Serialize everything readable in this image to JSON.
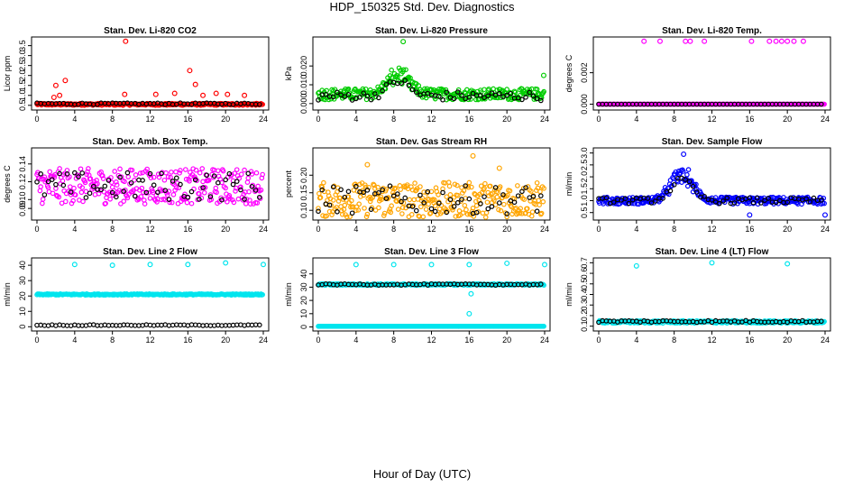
{
  "title": "HDP_150325  Std. Dev. Diagnostics",
  "x_title": "Hour of Day (UTC)",
  "colors": {
    "reference": "#000000",
    "red": "#ff0000",
    "green": "#00cc00",
    "magenta": "#ff00ff",
    "orange": "#ffa500",
    "blue": "#0000ff",
    "cyan": "#00e5ee"
  },
  "chart_data": [
    {
      "type": "scatter",
      "title": "Stan. Dev. Li-820 CO2",
      "ylabel": "Licor ppm",
      "xlim": [
        0,
        24
      ],
      "ylim": [
        0.4,
        3.8
      ],
      "xticks": [
        "0",
        "4",
        "8",
        "12",
        "16",
        "20",
        "24"
      ],
      "yticks": [
        "0.5",
        "1.0",
        "1.5",
        "2.0",
        "2.5",
        "3.0",
        "3.5"
      ],
      "ytick_values": [
        0.5,
        1.0,
        1.5,
        2.0,
        2.5,
        3.0,
        3.5
      ],
      "series_color": "red",
      "base": 0.55,
      "spread": 0.05,
      "black_base": 0.58,
      "outliers": [
        [
          9.4,
          3.72
        ],
        [
          16.2,
          2.25
        ],
        [
          3.0,
          1.75
        ],
        [
          2.0,
          1.5
        ],
        [
          16.8,
          1.55
        ],
        [
          9.3,
          1.05
        ],
        [
          12.6,
          1.05
        ],
        [
          14.6,
          1.1
        ],
        [
          17.6,
          1.0
        ],
        [
          19.0,
          1.1
        ],
        [
          20.2,
          1.05
        ],
        [
          22.0,
          1.0
        ],
        [
          2.4,
          1.0
        ],
        [
          1.8,
          0.9
        ]
      ]
    },
    {
      "type": "scatter",
      "title": "Stan. Dev. Li-820 Pressure",
      "ylabel": "kPa",
      "xlim": [
        0,
        24
      ],
      "ylim": [
        -0.002,
        0.034
      ],
      "xticks": [
        "0",
        "4",
        "8",
        "12",
        "16",
        "20",
        "24"
      ],
      "yticks": [
        "0.000",
        "0.010",
        "0.020"
      ],
      "ytick_values": [
        0.0,
        0.01,
        0.02
      ],
      "series_color": "green",
      "base": 0.005,
      "spread": 0.003,
      "black_base": 0.004,
      "bump_center": 8.5,
      "bump_height": 0.01,
      "outliers": [
        [
          9.0,
          0.033
        ],
        [
          23.9,
          0.015
        ]
      ]
    },
    {
      "type": "scatter",
      "title": "Stan. Dev. Li-820 Temp.",
      "ylabel": "degrees C",
      "xlim": [
        0,
        24
      ],
      "ylim": [
        -0.0002,
        0.0041
      ],
      "xticks": [
        "0",
        "4",
        "8",
        "12",
        "16",
        "20",
        "24"
      ],
      "yticks": [
        "0.000",
        "0.002"
      ],
      "ytick_values": [
        0.0,
        0.002
      ],
      "series_color": "magenta",
      "base": 0.0,
      "spread": 0.0,
      "black_base": 0.0,
      "outliers": [
        [
          4.8,
          0.004
        ],
        [
          6.5,
          0.004
        ],
        [
          9.2,
          0.004
        ],
        [
          9.7,
          0.004
        ],
        [
          11.2,
          0.004
        ],
        [
          16.2,
          0.004
        ],
        [
          18.1,
          0.004
        ],
        [
          18.8,
          0.004
        ],
        [
          19.4,
          0.004
        ],
        [
          20.0,
          0.004
        ],
        [
          20.7,
          0.004
        ],
        [
          21.7,
          0.004
        ]
      ]
    },
    {
      "type": "scatter",
      "title": "Stan. Dev. Amb. Box Temp.",
      "ylabel": "degrees C",
      "xlim": [
        0,
        24
      ],
      "ylim": [
        0.08,
        0.155
      ],
      "xticks": [
        "0",
        "4",
        "8",
        "12",
        "16",
        "20",
        "24"
      ],
      "yticks": [
        "0.09",
        "0.10",
        "0.12",
        "0.14"
      ],
      "ytick_values": [
        0.09,
        0.1,
        0.12,
        0.14
      ],
      "series_color": "magenta",
      "base": 0.115,
      "spread": 0.02,
      "black_base": 0.115,
      "outliers": []
    },
    {
      "type": "scatter",
      "title": "Stan. Dev. Gas Stream RH",
      "ylabel": "percent",
      "xlim": [
        0,
        24
      ],
      "ylim": [
        0.08,
        0.27
      ],
      "xticks": [
        "0",
        "4",
        "8",
        "12",
        "16",
        "20",
        "24"
      ],
      "yticks": [
        "0.10",
        "0.15",
        "0.20"
      ],
      "ytick_values": [
        0.1,
        0.15,
        0.2
      ],
      "series_color": "orange",
      "base": 0.13,
      "spread": 0.05,
      "black_base": 0.13,
      "outliers": [
        [
          16.4,
          0.255
        ],
        [
          19.2,
          0.22
        ],
        [
          5.2,
          0.23
        ]
      ]
    },
    {
      "type": "scatter",
      "title": "Stan. Dev. Sample Flow",
      "ylabel": "ml/min",
      "xlim": [
        0,
        24
      ],
      "ylim": [
        0.3,
        3.1
      ],
      "xticks": [
        "0",
        "4",
        "8",
        "12",
        "16",
        "20",
        "24"
      ],
      "yticks": [
        "0.5",
        "1.0",
        "1.5",
        "2.0",
        "2.5",
        "3.0"
      ],
      "ytick_values": [
        0.5,
        1.0,
        1.5,
        2.0,
        2.5,
        3.0
      ],
      "series_color": "blue",
      "base": 1.0,
      "spread": 0.15,
      "black_base": 1.0,
      "bump_center": 8.8,
      "bump_height": 1.1,
      "outliers": [
        [
          9.0,
          2.95
        ],
        [
          16.0,
          0.4
        ],
        [
          24.0,
          0.4
        ]
      ]
    },
    {
      "type": "scatter",
      "title": "Stan. Dev. Line 2 Flow",
      "ylabel": "ml/min",
      "xlim": [
        0,
        24
      ],
      "ylim": [
        -1,
        43
      ],
      "xticks": [
        "0",
        "4",
        "8",
        "12",
        "16",
        "20",
        "24"
      ],
      "yticks": [
        "0",
        "10",
        "20",
        "30",
        "40"
      ],
      "ytick_values": [
        0,
        10,
        20,
        30,
        40
      ],
      "series_color": "cyan",
      "base": 21,
      "spread": 0.4,
      "black_base": 1.0,
      "outliers": [
        [
          4.0,
          40.5
        ],
        [
          8.0,
          40.0
        ],
        [
          12.0,
          40.5
        ],
        [
          16.0,
          40.5
        ],
        [
          20.0,
          41.5
        ],
        [
          24.0,
          40.5
        ]
      ]
    },
    {
      "type": "scatter",
      "title": "Stan. Dev. Line 3 Flow",
      "ylabel": "ml/min",
      "xlim": [
        0,
        24
      ],
      "ylim": [
        -1,
        50
      ],
      "xticks": [
        "0",
        "4",
        "8",
        "12",
        "16",
        "20",
        "24"
      ],
      "yticks": [
        "0",
        "10",
        "20",
        "30",
        "40"
      ],
      "ytick_values": [
        0,
        10,
        20,
        30,
        40
      ],
      "series_color": "cyan",
      "base": 32,
      "spread": 0.6,
      "black_base": 32,
      "cyan_low": 0.5,
      "outliers": [
        [
          4.0,
          47
        ],
        [
          8.0,
          47
        ],
        [
          12.0,
          47
        ],
        [
          16.0,
          47
        ],
        [
          20.0,
          48
        ],
        [
          24.0,
          47
        ],
        [
          16.0,
          10
        ],
        [
          16.2,
          25
        ]
      ]
    },
    {
      "type": "scatter",
      "title": "Stan. Dev. Line 4 (LT) Flow",
      "ylabel": "ml/min",
      "xlim": [
        0,
        24
      ],
      "ylim": [
        0.08,
        0.72
      ],
      "xticks": [
        "0",
        "4",
        "8",
        "12",
        "16",
        "20",
        "24"
      ],
      "yticks": [
        "0.1",
        "0.2",
        "0.3",
        "0.4",
        "0.5",
        "0.6",
        "0.7"
      ],
      "ytick_values": [
        0.1,
        0.2,
        0.3,
        0.4,
        0.5,
        0.6,
        0.7
      ],
      "series_color": "cyan",
      "base": 0.14,
      "spread": 0.012,
      "black_base": 0.145,
      "outliers": [
        [
          4.0,
          0.67
        ],
        [
          12.0,
          0.7
        ],
        [
          20.0,
          0.69
        ]
      ]
    }
  ]
}
